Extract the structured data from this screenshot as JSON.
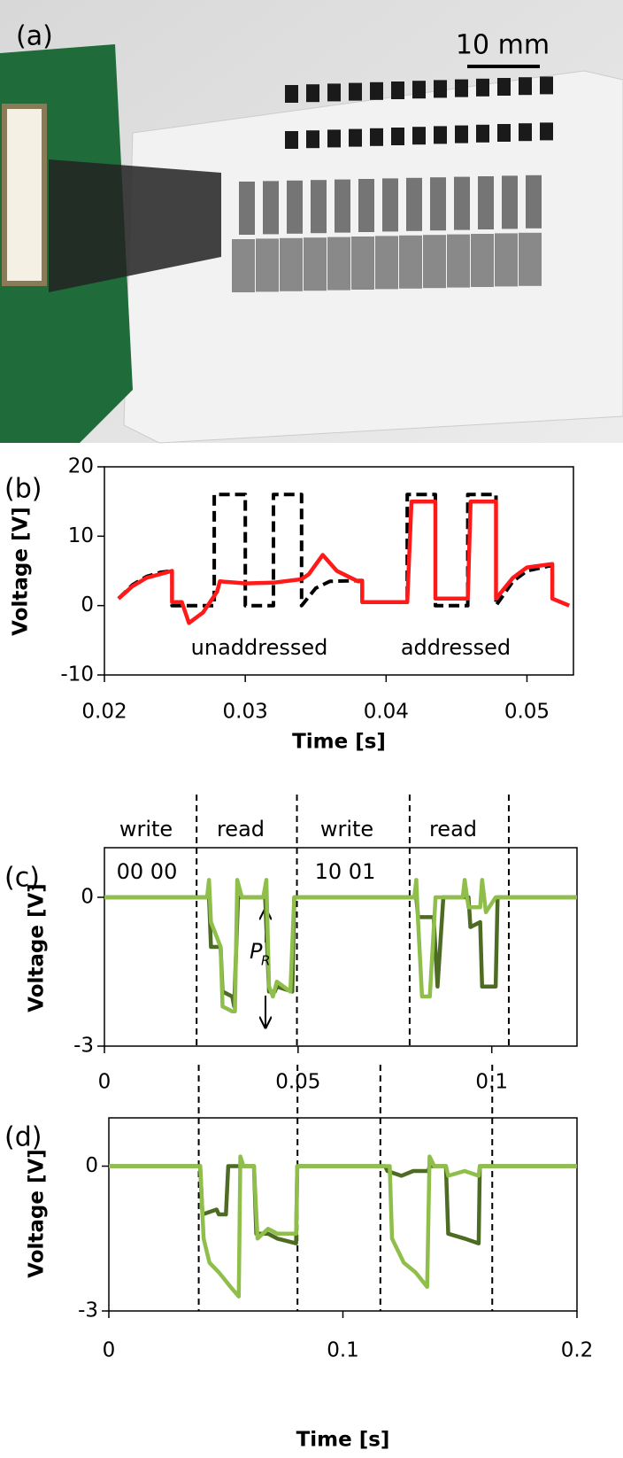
{
  "panel_a": {
    "label": "(a)",
    "scale_bar": "10 mm"
  },
  "chart_data": [
    {
      "type": "line",
      "panel_label": "(b)",
      "xlabel": "Time [s]",
      "ylabel": "Voltage [V]",
      "xlim": [
        0.02,
        0.0533
      ],
      "xticks": [
        0.02,
        0.03,
        0.04,
        0.05
      ],
      "ylim": [
        -10,
        20
      ],
      "yticks": [
        -10,
        0,
        10,
        20
      ],
      "annotations": [
        "unaddressed",
        "addressed"
      ],
      "series": [
        {
          "color": "#000000",
          "dashed": true,
          "x": [
            0.021,
            0.022,
            0.023,
            0.024,
            0.0248,
            0.0248,
            0.0278,
            0.0278,
            0.03,
            0.03,
            0.032,
            0.032,
            0.034,
            0.034,
            0.035,
            0.036,
            0.038,
            0.0383,
            0.0383,
            0.0415,
            0.0415,
            0.0435,
            0.0435,
            0.0458,
            0.0458,
            0.0478,
            0.0478,
            0.049,
            0.05,
            0.0518,
            0.0518,
            0.053
          ],
          "values": [
            1,
            3,
            4.2,
            4.8,
            5,
            0,
            0,
            16,
            16,
            0,
            0,
            16,
            16,
            0,
            2.5,
            3.5,
            3.6,
            3.6,
            0.5,
            0.5,
            16,
            16,
            0,
            0,
            16,
            16,
            0,
            3.5,
            5,
            5.8,
            1,
            0
          ]
        },
        {
          "color": "#ff1a1a",
          "dashed": false,
          "x": [
            0.021,
            0.022,
            0.023,
            0.0248,
            0.0248,
            0.0255,
            0.026,
            0.027,
            0.028,
            0.0282,
            0.03,
            0.032,
            0.034,
            0.0345,
            0.0355,
            0.0365,
            0.038,
            0.0383,
            0.0383,
            0.0415,
            0.0418,
            0.0435,
            0.0435,
            0.0458,
            0.046,
            0.0478,
            0.0478,
            0.049,
            0.05,
            0.0518,
            0.0518,
            0.053
          ],
          "values": [
            1,
            2.8,
            4,
            5,
            0.5,
            0.5,
            -2.5,
            -1,
            2,
            3.5,
            3.2,
            3.3,
            3.8,
            4.5,
            7.3,
            5,
            3.5,
            3.5,
            0.5,
            0.5,
            15,
            15,
            1,
            1,
            15,
            15,
            1,
            4,
            5.5,
            6,
            1,
            0
          ]
        }
      ]
    },
    {
      "type": "line",
      "panel_label": "(c)",
      "ylabel": "Voltage [V]",
      "xlim": [
        0,
        0.122
      ],
      "xticks": [
        0,
        0.05,
        0.1
      ],
      "ylim": [
        -3,
        1
      ],
      "yticks": [
        -3,
        0
      ],
      "vlines": [
        0.0238,
        0.0497,
        0.0788,
        0.1044
      ],
      "annotations": [
        "write",
        "read",
        "write",
        "read",
        "00 00",
        "10 01",
        "P",
        "R"
      ],
      "series": [
        {
          "color": "#4e6b24",
          "dashed": false,
          "x": [
            0,
            0.027,
            0.0275,
            0.03,
            0.0305,
            0.033,
            0.0335,
            0.0345,
            0.0415,
            0.0425,
            0.044,
            0.0445,
            0.0485,
            0.049,
            0.0805,
            0.081,
            0.085,
            0.086,
            0.0875,
            0.094,
            0.0945,
            0.097,
            0.0975,
            0.101,
            0.1015,
            0.122
          ],
          "values": [
            0,
            0,
            -1,
            -1,
            -1.9,
            -2,
            -2.2,
            0,
            0,
            -1.9,
            -1.9,
            -1.8,
            -1.9,
            0,
            0,
            -0.4,
            -0.4,
            -1.8,
            0,
            0,
            -0.6,
            -0.5,
            -1.8,
            -1.8,
            0,
            0
          ]
        },
        {
          "color": "#8fbf4a",
          "dashed": false,
          "x": [
            0,
            0.0265,
            0.027,
            0.0275,
            0.03,
            0.0305,
            0.033,
            0.0337,
            0.0343,
            0.0355,
            0.041,
            0.0418,
            0.0425,
            0.0435,
            0.0445,
            0.048,
            0.049,
            0.08,
            0.0805,
            0.081,
            0.082,
            0.084,
            0.0855,
            0.0925,
            0.093,
            0.094,
            0.097,
            0.0975,
            0.0985,
            0.101,
            0.122
          ],
          "values": [
            0,
            0,
            0.35,
            -0.5,
            -1,
            -2.2,
            -2.3,
            -2.3,
            0.35,
            0,
            0,
            0.35,
            -1.8,
            -2,
            -1.7,
            -1.9,
            0,
            0,
            0.35,
            -0.5,
            -2,
            -2,
            0,
            0,
            0.35,
            -0.2,
            -0.2,
            0.35,
            -0.3,
            0,
            0
          ]
        }
      ]
    },
    {
      "type": "line",
      "panel_label": "(d)",
      "xlabel": "Time [s]",
      "ylabel": "Voltage [V]",
      "xlim": [
        0,
        0.2
      ],
      "xticks": [
        0,
        0.1,
        0.2
      ],
      "ylim": [
        -3,
        1
      ],
      "yticks": [
        -3,
        0
      ],
      "vlines": [
        0.0384,
        0.0806,
        0.116,
        0.1638
      ],
      "series": [
        {
          "color": "#4e6b24",
          "dashed": false,
          "x": [
            0,
            0.039,
            0.04,
            0.046,
            0.047,
            0.05,
            0.051,
            0.062,
            0.063,
            0.068,
            0.072,
            0.08,
            0.0805,
            0.118,
            0.119,
            0.125,
            0.13,
            0.1365,
            0.137,
            0.144,
            0.145,
            0.152,
            0.158,
            0.1585,
            0.2
          ],
          "values": [
            0,
            0,
            -1,
            -0.9,
            -1,
            -1,
            0,
            0,
            -1.4,
            -1.4,
            -1.5,
            -1.6,
            0,
            0,
            -0.1,
            -0.2,
            -0.1,
            -0.1,
            0,
            0,
            -1.4,
            -1.5,
            -1.6,
            0,
            0
          ]
        },
        {
          "color": "#8fbf4a",
          "dashed": false,
          "x": [
            0,
            0.039,
            0.0405,
            0.043,
            0.047,
            0.052,
            0.0555,
            0.0562,
            0.0575,
            0.062,
            0.0635,
            0.068,
            0.072,
            0.08,
            0.0805,
            0.12,
            0.121,
            0.126,
            0.131,
            0.136,
            0.137,
            0.139,
            0.144,
            0.145,
            0.152,
            0.158,
            0.1585,
            0.2
          ],
          "values": [
            0,
            0,
            -1.5,
            -2,
            -2.2,
            -2.5,
            -2.7,
            0.2,
            0,
            0,
            -1.5,
            -1.3,
            -1.4,
            -1.4,
            0,
            0,
            -1.5,
            -2,
            -2.2,
            -2.5,
            0.2,
            0,
            0,
            -0.2,
            -0.1,
            -0.2,
            0,
            0
          ]
        }
      ]
    }
  ]
}
